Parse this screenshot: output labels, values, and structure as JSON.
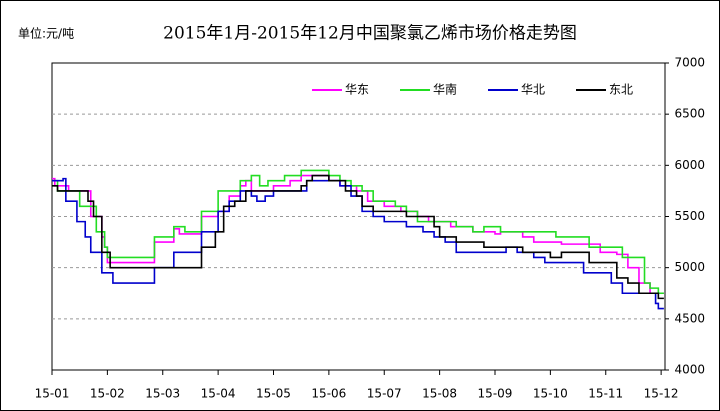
{
  "chart_data": {
    "type": "line",
    "step": true,
    "title": "2015年1月-2015年12月中国聚氯乙烯市场价格走势图",
    "unit_label": "单位:元/吨",
    "xlim": [
      0,
      11.07
    ],
    "xticks": [
      {
        "value": 0,
        "label": "15-01"
      },
      {
        "value": 1,
        "label": "15-02"
      },
      {
        "value": 2,
        "label": "15-03"
      },
      {
        "value": 3,
        "label": "15-04"
      },
      {
        "value": 4,
        "label": "15-05"
      },
      {
        "value": 5,
        "label": "15-06"
      },
      {
        "value": 6,
        "label": "15-07"
      },
      {
        "value": 7,
        "label": "15-08"
      },
      {
        "value": 8,
        "label": "15-09"
      },
      {
        "value": 9,
        "label": "15-10"
      },
      {
        "value": 10,
        "label": "15-11"
      },
      {
        "value": 11,
        "label": "15-12"
      }
    ],
    "ylim": [
      4000,
      7000
    ],
    "yticks": [
      4000,
      4500,
      5000,
      5500,
      6000,
      6500,
      7000
    ],
    "grid": true,
    "legend": "top-right",
    "series": [
      {
        "name": "华东",
        "color": "#ff00ff",
        "x": [
          0,
          0.05,
          0.3,
          0.7,
          0.9,
          0.95,
          1.0,
          1.85,
          2.2,
          2.3,
          2.7,
          3.0,
          3.2,
          3.4,
          3.5,
          3.6,
          4.0,
          4.3,
          4.5,
          5.0,
          5.2,
          5.5,
          5.7,
          6.0,
          6.3,
          6.6,
          6.8,
          7.2,
          7.6,
          8.0,
          8.1,
          8.5,
          8.7,
          9.2,
          9.9,
          10.2,
          10.4,
          10.6,
          10.8,
          11.05
        ],
        "values": [
          5870,
          5800,
          5750,
          5500,
          5300,
          5200,
          5050,
          5250,
          5380,
          5330,
          5500,
          5550,
          5700,
          5800,
          5850,
          5750,
          5800,
          5850,
          5900,
          5850,
          5800,
          5750,
          5650,
          5600,
          5550,
          5500,
          5450,
          5400,
          5350,
          5330,
          5350,
          5300,
          5250,
          5230,
          5150,
          5130,
          5000,
          4850,
          4750,
          4750
        ]
      },
      {
        "name": "华南",
        "color": "#22dd22",
        "x": [
          0,
          0.1,
          0.5,
          0.8,
          0.95,
          1.0,
          1.85,
          2.2,
          2.4,
          2.7,
          3.0,
          3.4,
          3.6,
          3.75,
          3.9,
          4.2,
          4.5,
          5.0,
          5.2,
          5.4,
          5.6,
          5.8,
          6.2,
          6.4,
          6.6,
          7.3,
          7.6,
          7.8,
          8.1,
          9.1,
          9.7,
          10.3,
          10.7,
          10.8,
          10.95,
          11.05
        ],
        "values": [
          5850,
          5750,
          5600,
          5350,
          5200,
          5100,
          5300,
          5400,
          5350,
          5550,
          5750,
          5850,
          5900,
          5800,
          5850,
          5900,
          5950,
          5900,
          5850,
          5800,
          5750,
          5650,
          5600,
          5550,
          5450,
          5400,
          5350,
          5400,
          5350,
          5300,
          5200,
          5100,
          4850,
          4800,
          4750,
          4750
        ]
      },
      {
        "name": "华北",
        "color": "#0000cc",
        "x": [
          0,
          0.2,
          0.25,
          0.45,
          0.6,
          0.7,
          0.9,
          1.1,
          1.85,
          2.2,
          2.7,
          3.0,
          3.2,
          3.4,
          3.6,
          3.7,
          3.85,
          4.0,
          4.6,
          5.0,
          5.2,
          5.4,
          5.6,
          5.8,
          6.0,
          6.4,
          6.7,
          6.9,
          7.1,
          7.3,
          8.2,
          8.4,
          8.7,
          8.9,
          9.6,
          10.1,
          10.3,
          10.9,
          10.95,
          11.05
        ],
        "values": [
          5850,
          5870,
          5650,
          5450,
          5300,
          5150,
          4950,
          4850,
          5000,
          5150,
          5350,
          5550,
          5650,
          5750,
          5700,
          5650,
          5700,
          5750,
          5850,
          5850,
          5800,
          5700,
          5550,
          5500,
          5450,
          5400,
          5350,
          5300,
          5250,
          5150,
          5200,
          5150,
          5100,
          5050,
          4950,
          4850,
          4750,
          4650,
          4600,
          4600
        ]
      },
      {
        "name": "东北",
        "color": "#000000",
        "x": [
          0,
          0.1,
          0.65,
          0.75,
          0.9,
          1.05,
          2.7,
          2.95,
          3.1,
          3.3,
          3.5,
          4.5,
          4.6,
          4.7,
          5.0,
          5.3,
          5.5,
          5.6,
          5.8,
          6.4,
          6.9,
          7.0,
          7.3,
          7.8,
          8.5,
          9.0,
          9.2,
          9.7,
          10.2,
          10.4,
          10.6,
          10.95,
          11.05
        ],
        "values": [
          5800,
          5750,
          5650,
          5500,
          5150,
          5000,
          5200,
          5350,
          5600,
          5650,
          5750,
          5800,
          5850,
          5900,
          5850,
          5750,
          5700,
          5600,
          5550,
          5500,
          5400,
          5300,
          5250,
          5200,
          5150,
          5100,
          5150,
          5050,
          4900,
          4850,
          4750,
          4700,
          4700
        ]
      }
    ]
  }
}
